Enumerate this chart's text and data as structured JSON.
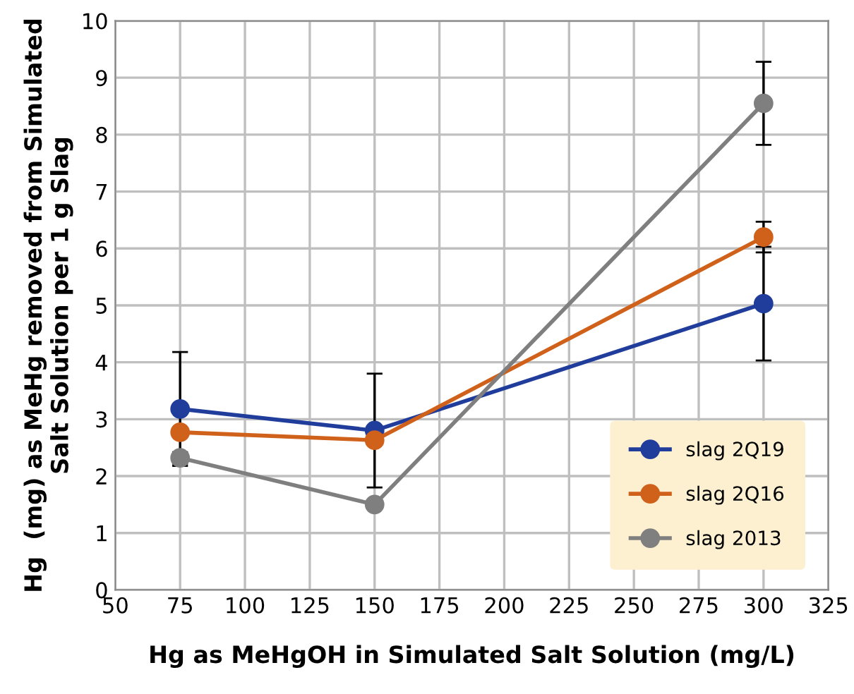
{
  "chart_data": {
    "type": "line",
    "xlabel": "Hg as MeHgOH in Simulated Salt Solution (mg/L)",
    "ylabel": "Hg  (mg) as MeHg removed from Simulated\nSalt Solution per 1 g Slag",
    "x": [
      75,
      150,
      300
    ],
    "series": [
      {
        "name": "slag 2Q19",
        "color": "#203d9c",
        "values": [
          3.18,
          2.8,
          5.03
        ],
        "errors": [
          1.0,
          1.0,
          1.0
        ]
      },
      {
        "name": "slag 2Q16",
        "color": "#d0611a",
        "values": [
          2.77,
          2.63,
          6.2
        ],
        "errors": [
          null,
          null,
          0.27
        ]
      },
      {
        "name": "slag 2013",
        "color": "#7f7f7f",
        "values": [
          2.32,
          1.5,
          8.55
        ],
        "errors": [
          0.1,
          null,
          0.73
        ]
      }
    ],
    "xlim": [
      50,
      325
    ],
    "xticks": [
      50,
      75,
      100,
      125,
      150,
      175,
      200,
      225,
      250,
      275,
      300,
      325
    ],
    "ylim": [
      0,
      10
    ],
    "yticks": [
      0,
      1,
      2,
      3,
      4,
      5,
      6,
      7,
      8,
      9,
      10
    ],
    "grid": true,
    "legend": "bottom right",
    "marker": "circle",
    "line_style": "solid"
  }
}
